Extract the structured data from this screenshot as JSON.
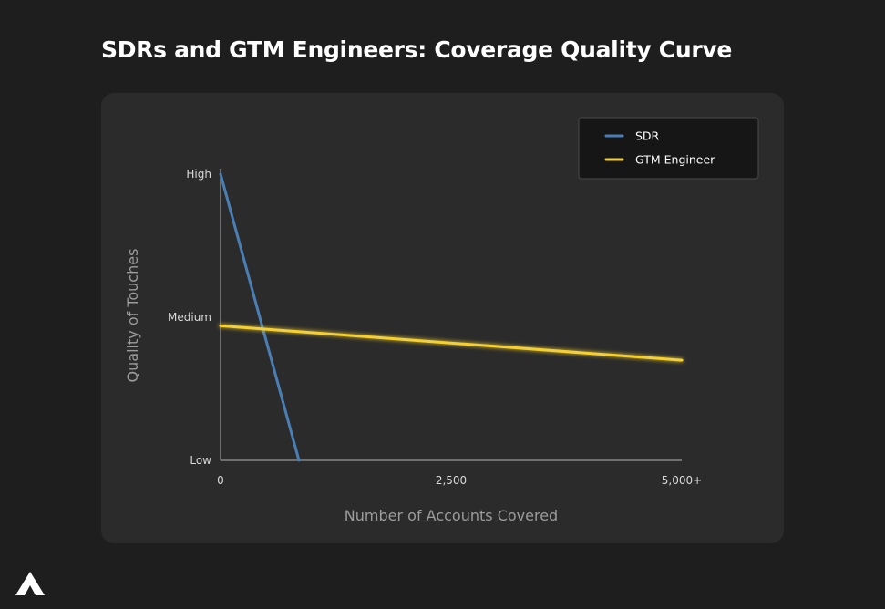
{
  "page": {
    "title": "SDRs and GTM Engineers: Coverage Quality Curve"
  },
  "chart_data": {
    "type": "line",
    "title": "SDRs and GTM Engineers: Coverage Quality Curve",
    "xlabel": "Number of Accounts Covered",
    "ylabel": "Quality of Touches",
    "xlim": [
      0,
      5000
    ],
    "ylim": [
      0,
      1
    ],
    "x_ticks": [
      {
        "value": 0,
        "label": "0"
      },
      {
        "value": 2500,
        "label": "2,500"
      },
      {
        "value": 5000,
        "label": "5,000+"
      }
    ],
    "y_ticks": [
      {
        "value": 0,
        "label": "Low"
      },
      {
        "value": 0.5,
        "label": "Medium"
      },
      {
        "value": 1,
        "label": "High"
      }
    ],
    "legend_position": "top-right",
    "grid": false,
    "series": [
      {
        "name": "SDR",
        "color": "#4a7fb5",
        "x": [
          0,
          850
        ],
        "y": [
          1.0,
          0.0
        ]
      },
      {
        "name": "GTM Engineer",
        "color": "#f5d033",
        "x": [
          0,
          5000
        ],
        "y": [
          0.47,
          0.35
        ]
      }
    ]
  },
  "logo": {
    "name": "brand-logo-icon",
    "color": "#ffffff"
  }
}
